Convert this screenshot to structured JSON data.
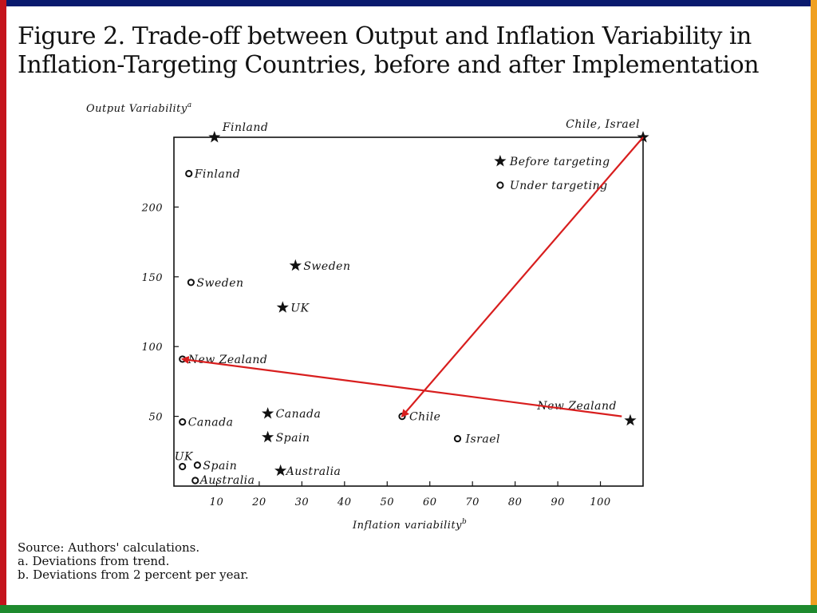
{
  "title": {
    "line1": "Figure 2. Trade-off between Output and Inflation Variability in",
    "line2": "Inflation-Targeting Countries, before and after Implementation"
  },
  "notes": [
    "Source: Authors' calculations.",
    "a. Deviations from trend.",
    "b. Deviations from 2 percent per year."
  ],
  "colors": {
    "frame_top": "#0a1a6e",
    "frame_left": "#c4141c",
    "frame_right": "#f0a020",
    "frame_bottom": "#1e8a2e",
    "arrow": "#d81e1e"
  },
  "chart_data": {
    "type": "scatter",
    "ylabel": "Output Variability",
    "ylabel_sup": "a",
    "xlabel": "Inflation variability",
    "xlabel_sup": "b",
    "xlim": [
      0,
      110
    ],
    "ylim": [
      0,
      250
    ],
    "xticks": [
      10,
      20,
      30,
      40,
      50,
      60,
      70,
      80,
      90,
      100
    ],
    "yticks": [
      50,
      100,
      150,
      200
    ],
    "grid": false,
    "legend_position": "top-right",
    "legend": [
      {
        "marker": "star",
        "label": "Before targeting"
      },
      {
        "marker": "circle",
        "label": "Under targeting"
      }
    ],
    "series": [
      {
        "name": "Before targeting",
        "marker": "star",
        "points": [
          {
            "label": "Finland",
            "x": 9.5,
            "y": 250
          },
          {
            "label": "Chile, Israel",
            "x": 110,
            "y": 250
          },
          {
            "label": "Sweden",
            "x": 28.5,
            "y": 158
          },
          {
            "label": "UK",
            "x": 25.5,
            "y": 128
          },
          {
            "label": "Canada",
            "x": 22,
            "y": 52
          },
          {
            "label": "Spain",
            "x": 22,
            "y": 35
          },
          {
            "label": "Australia",
            "x": 25,
            "y": 11
          },
          {
            "label": "New Zealand",
            "x": 107,
            "y": 47
          }
        ]
      },
      {
        "name": "Under targeting",
        "marker": "circle",
        "points": [
          {
            "label": "Finland",
            "x": 3.5,
            "y": 224
          },
          {
            "label": "Sweden",
            "x": 4,
            "y": 146
          },
          {
            "label": "New Zealand",
            "x": 2,
            "y": 91
          },
          {
            "label": "Canada",
            "x": 2,
            "y": 46
          },
          {
            "label": "Chile",
            "x": 53.5,
            "y": 50
          },
          {
            "label": "Israel",
            "x": 66.5,
            "y": 34
          },
          {
            "label": "UK",
            "x": 2,
            "y": 14
          },
          {
            "label": "Spain",
            "x": 5.5,
            "y": 15
          },
          {
            "label": "Australia",
            "x": 5,
            "y": 4
          }
        ]
      }
    ],
    "arrows": [
      {
        "from": [
          110,
          250
        ],
        "to": [
          53.5,
          50
        ]
      },
      {
        "from": [
          105,
          50
        ],
        "to": [
          2,
          91
        ]
      }
    ]
  }
}
